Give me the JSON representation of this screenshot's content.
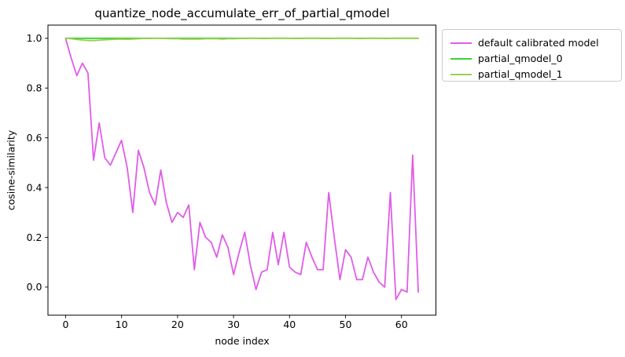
{
  "figure": {
    "background": "#ffffff"
  },
  "chart_data": {
    "type": "line",
    "title": "quantize_node_accumulate_err_of_partial_qmodel",
    "xlabel": "node index",
    "ylabel": "cosine-similarity",
    "grid": false,
    "legend_position": "outside-upper-right",
    "xlim": [
      -3.15,
      66.15
    ],
    "ylim": [
      -0.113,
      1.053
    ],
    "xticks": {
      "values": [
        0,
        10,
        20,
        30,
        40,
        50,
        60
      ],
      "labels": [
        "0",
        "10",
        "20",
        "30",
        "40",
        "50",
        "60"
      ]
    },
    "yticks": {
      "values": [
        0.0,
        0.2,
        0.4,
        0.6,
        0.8,
        1.0
      ],
      "labels": [
        "0.0",
        "0.2",
        "0.4",
        "0.6",
        "0.8",
        "1.0"
      ]
    },
    "x": [
      0,
      1,
      2,
      3,
      4,
      5,
      6,
      7,
      8,
      9,
      10,
      11,
      12,
      13,
      14,
      15,
      16,
      17,
      18,
      19,
      20,
      21,
      22,
      23,
      24,
      25,
      26,
      27,
      28,
      29,
      30,
      31,
      32,
      33,
      34,
      35,
      36,
      37,
      38,
      39,
      40,
      41,
      42,
      43,
      44,
      45,
      46,
      47,
      48,
      49,
      50,
      51,
      52,
      53,
      54,
      55,
      56,
      57,
      58,
      59,
      60,
      61,
      62,
      63
    ],
    "series": [
      {
        "name": "default calibrated model",
        "color": "#e05ce8",
        "values": [
          1.0,
          0.92,
          0.85,
          0.9,
          0.86,
          0.51,
          0.66,
          0.52,
          0.49,
          0.54,
          0.59,
          0.48,
          0.3,
          0.55,
          0.48,
          0.38,
          0.33,
          0.47,
          0.34,
          0.26,
          0.3,
          0.28,
          0.33,
          0.07,
          0.26,
          0.2,
          0.18,
          0.12,
          0.21,
          0.16,
          0.05,
          0.14,
          0.22,
          0.09,
          -0.01,
          0.06,
          0.07,
          0.22,
          0.09,
          0.22,
          0.08,
          0.06,
          0.05,
          0.18,
          0.12,
          0.07,
          0.07,
          0.38,
          0.2,
          0.03,
          0.15,
          0.12,
          0.03,
          0.03,
          0.12,
          0.06,
          0.02,
          0.0,
          0.38,
          -0.05,
          -0.01,
          -0.02,
          0.53,
          -0.02
        ]
      },
      {
        "name": "partial_qmodel_0",
        "color": "#33d633",
        "values": [
          1.0,
          1.0,
          1.0,
          1.0,
          1.0,
          1.0,
          1.0,
          1.0,
          1.0,
          1.0,
          1.0,
          1.0,
          1.0,
          1.0,
          1.0,
          1.0,
          1.0,
          1.0,
          1.0,
          1.0,
          1.0,
          1.0,
          1.0,
          1.0,
          1.0,
          1.0,
          1.0,
          1.0,
          1.0,
          1.0,
          1.0,
          1.0,
          1.0,
          1.0,
          1.0,
          1.0,
          1.0,
          1.0,
          1.0,
          1.0,
          1.0,
          1.0,
          1.0,
          1.0,
          1.0,
          1.0,
          1.0,
          1.0,
          1.0,
          1.0,
          1.0,
          1.0,
          1.0,
          1.0,
          1.0,
          1.0,
          1.0,
          1.0,
          1.0,
          1.0,
          1.0,
          1.0,
          1.0,
          1.0
        ]
      },
      {
        "name": "partial_qmodel_1",
        "color": "#a0cd50",
        "values": [
          1.0,
          0.998,
          0.995,
          0.993,
          0.991,
          0.991,
          0.992,
          0.994,
          0.995,
          0.996,
          0.997,
          0.996,
          0.997,
          0.998,
          0.999,
          0.999,
          1.0,
          1.0,
          0.999,
          0.998,
          0.998,
          0.997,
          0.997,
          0.997,
          0.997,
          0.998,
          0.998,
          0.998,
          0.997,
          0.998,
          0.998,
          0.999,
          0.999,
          1.0,
          1.0,
          0.999,
          0.999,
          1.0,
          1.0,
          1.0,
          1.0,
          0.999,
          0.999,
          1.0,
          1.0,
          1.0,
          0.999,
          0.999,
          1.0,
          1.0,
          1.0,
          1.0,
          0.999,
          0.999,
          1.0,
          1.0,
          1.0,
          0.999,
          1.0,
          1.0,
          1.0,
          1.0,
          1.0,
          1.0
        ]
      }
    ]
  }
}
